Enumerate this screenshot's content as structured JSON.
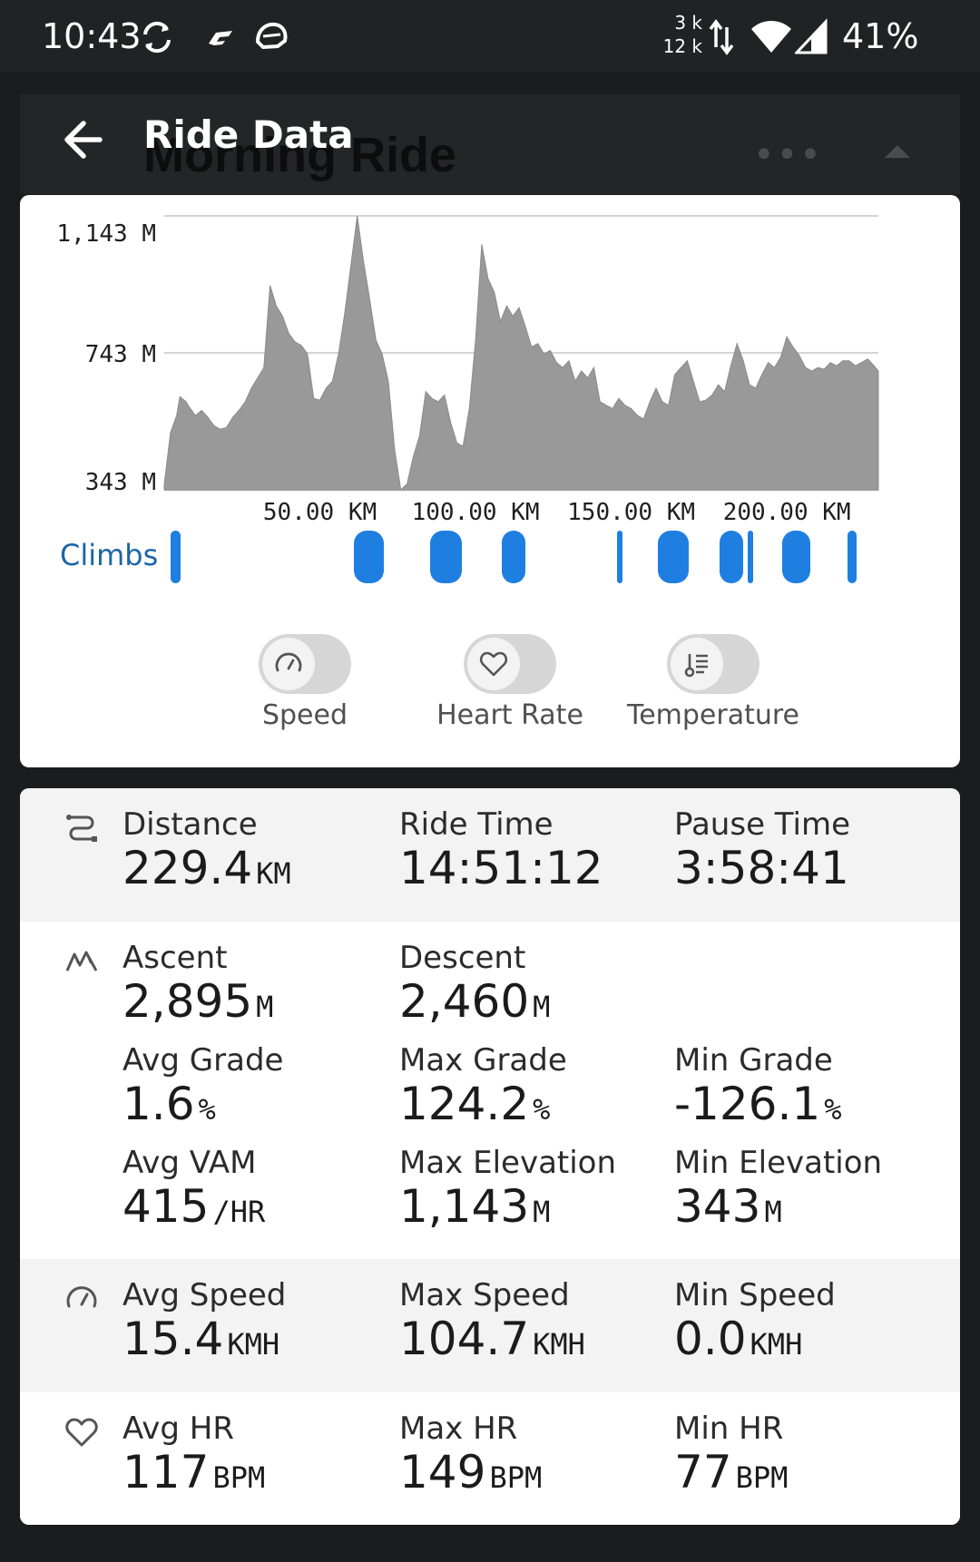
{
  "status_bar": {
    "time": "10:43",
    "net_up": "3 k",
    "net_down": "12 k",
    "battery": "41%"
  },
  "background": {
    "title": "Morning Ride"
  },
  "header": {
    "title": "Ride Data"
  },
  "chart_data": {
    "type": "area",
    "y_ticks": [
      "1,143 M",
      "743 M",
      "343 M"
    ],
    "x_ticks": [
      "50.00 KM",
      "100.00 KM",
      "150.00 KM",
      "200.00 KM"
    ],
    "ylim": [
      343,
      1143
    ],
    "xlim": [
      0,
      229.4
    ],
    "x": [
      0,
      2,
      4,
      5,
      7,
      8,
      10,
      12,
      14,
      16,
      18,
      20,
      22,
      24,
      26,
      28,
      30,
      32,
      34,
      36,
      38,
      40,
      42,
      44,
      46,
      48,
      50,
      52,
      54,
      56,
      58,
      60,
      62,
      64,
      66,
      68,
      70,
      72,
      74,
      76,
      78,
      80,
      82,
      84,
      86,
      88,
      90,
      92,
      94,
      96,
      98,
      100,
      102,
      104,
      106,
      108,
      110,
      112,
      114,
      116,
      118,
      120,
      122,
      124,
      126,
      128,
      130,
      132,
      134,
      136,
      138,
      140,
      142,
      144,
      146,
      148,
      150,
      152,
      154,
      156,
      158,
      160,
      162,
      164,
      166,
      168,
      170,
      172,
      174,
      176,
      178,
      180,
      182,
      184,
      186,
      188,
      190,
      192,
      194,
      196,
      198,
      200,
      202,
      204,
      206,
      208,
      210,
      212,
      214,
      216,
      218,
      220,
      222,
      224,
      226,
      228,
      229.4
    ],
    "y": [
      358,
      510,
      560,
      615,
      600,
      585,
      560,
      575,
      555,
      530,
      520,
      525,
      555,
      575,
      600,
      640,
      670,
      700,
      940,
      880,
      850,
      800,
      775,
      765,
      740,
      610,
      605,
      640,
      660,
      740,
      860,
      1000,
      1143,
      1010,
      900,
      780,
      740,
      660,
      460,
      343,
      360,
      440,
      500,
      630,
      610,
      600,
      620,
      540,
      480,
      470,
      580,
      780,
      1060,
      960,
      920,
      835,
      880,
      850,
      875,
      820,
      760,
      770,
      740,
      750,
      715,
      700,
      720,
      660,
      690,
      670,
      700,
      600,
      590,
      580,
      610,
      590,
      580,
      560,
      550,
      600,
      640,
      600,
      590,
      680,
      700,
      720,
      660,
      600,
      605,
      620,
      650,
      630,
      705,
      770,
      720,
      650,
      640,
      680,
      715,
      700,
      730,
      790,
      760,
      735,
      700,
      690,
      700,
      695,
      715,
      705,
      720,
      720,
      705,
      715,
      725,
      705,
      690
    ],
    "grid": true
  },
  "climbs": {
    "label": "Climbs",
    "segments": [
      {
        "start": 2.0,
        "end": 5.3
      },
      {
        "start": 61.0,
        "end": 70.5
      },
      {
        "start": 85.5,
        "end": 95.5
      },
      {
        "start": 108.5,
        "end": 116.0
      },
      {
        "start": 145.5,
        "end": 146.7
      },
      {
        "start": 158.5,
        "end": 168.5
      },
      {
        "start": 178.5,
        "end": 186.0
      },
      {
        "start": 187.5,
        "end": 188.7
      },
      {
        "start": 198.5,
        "end": 207.5
      },
      {
        "start": 219.5,
        "end": 222.5
      }
    ]
  },
  "toggles": [
    {
      "label": "Speed",
      "icon": "speedometer-icon",
      "on": false
    },
    {
      "label": "Heart Rate",
      "icon": "heart-icon",
      "on": false
    },
    {
      "label": "Temperature",
      "icon": "thermometer-icon",
      "on": false
    }
  ],
  "stats": {
    "distance": {
      "label": "Distance",
      "value": "229.4",
      "unit": "KM"
    },
    "ride_time": {
      "label": "Ride Time",
      "value": "14:51:12",
      "unit": ""
    },
    "pause_time": {
      "label": "Pause Time",
      "value": "3:58:41",
      "unit": ""
    },
    "ascent": {
      "label": "Ascent",
      "value": "2,895",
      "unit": "M"
    },
    "descent": {
      "label": "Descent",
      "value": "2,460",
      "unit": "M"
    },
    "avg_grade": {
      "label": "Avg Grade",
      "value": "1.6",
      "unit": "%"
    },
    "max_grade": {
      "label": "Max Grade",
      "value": "124.2",
      "unit": "%"
    },
    "min_grade": {
      "label": "Min Grade",
      "value": "-126.1",
      "unit": "%"
    },
    "avg_vam": {
      "label": "Avg VAM",
      "value": "415",
      "unit": "/HR"
    },
    "max_elevation": {
      "label": "Max Elevation",
      "value": "1,143",
      "unit": "M"
    },
    "min_elevation": {
      "label": "Min Elevation",
      "value": "343",
      "unit": "M"
    },
    "avg_speed": {
      "label": "Avg Speed",
      "value": "15.4",
      "unit": "KMH"
    },
    "max_speed": {
      "label": "Max Speed",
      "value": "104.7",
      "unit": "KMH"
    },
    "min_speed": {
      "label": "Min Speed",
      "value": "0.0",
      "unit": "KMH"
    },
    "avg_hr": {
      "label": "Avg HR",
      "value": "117",
      "unit": "BPM"
    },
    "max_hr": {
      "label": "Max HR",
      "value": "149",
      "unit": "BPM"
    },
    "min_hr": {
      "label": "Min HR",
      "value": "77",
      "unit": "BPM"
    }
  },
  "colors": {
    "accent": "#1f7fe0",
    "elevation_fill": "#999999",
    "climbs_label": "#1c66a8"
  }
}
